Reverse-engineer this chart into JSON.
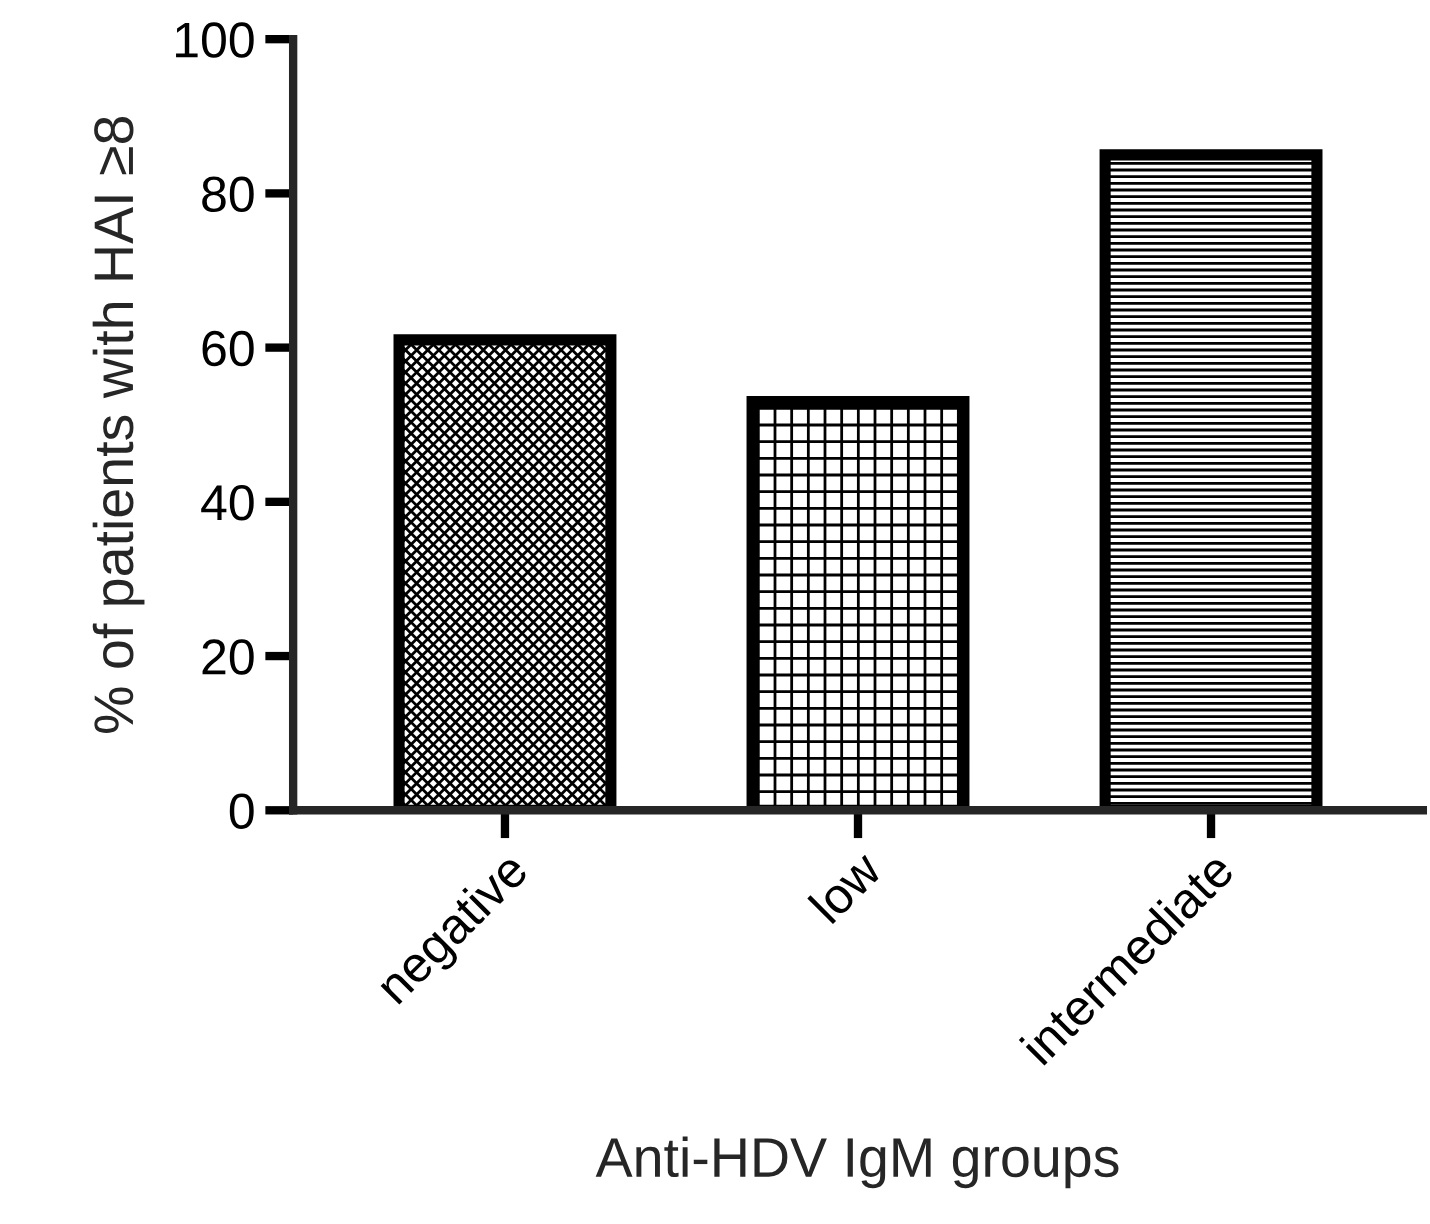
{
  "chart_data": {
    "type": "bar",
    "categories": [
      "negative",
      "low",
      "intermediate"
    ],
    "values": [
      61,
      53,
      85
    ],
    "color": "#000000",
    "xlabel": "Anti-HDV IgM groups",
    "ylabel": "% of patients with HAI ≥8",
    "ylim": [
      0,
      100
    ],
    "yticks": [
      0,
      20,
      40,
      60,
      80,
      100
    ],
    "grid": false,
    "legend": false
  }
}
